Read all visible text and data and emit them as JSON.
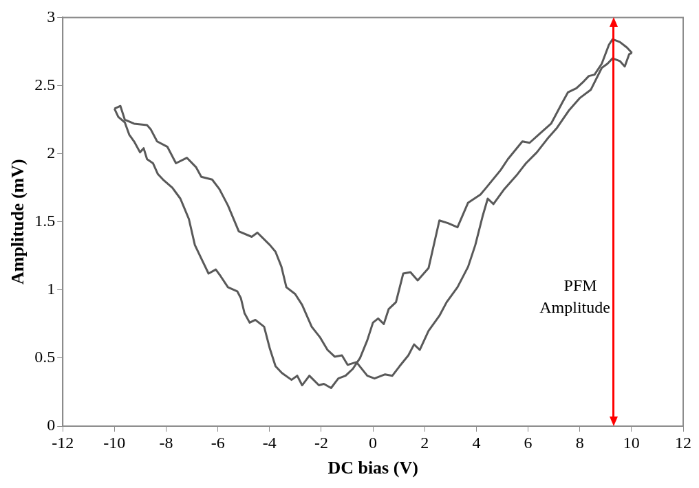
{
  "chart_data": {
    "type": "line",
    "xlabel": "DC bias (V)",
    "ylabel": "Amplitude (mV)",
    "xlim": [
      -12,
      12
    ],
    "xticks": [
      -12,
      -10,
      -8,
      -6,
      -4,
      -2,
      0,
      2,
      4,
      6,
      8,
      10,
      12
    ],
    "ylim": [
      0,
      3
    ],
    "yticks": [
      0,
      0.5,
      1,
      1.5,
      2,
      2.5,
      3
    ],
    "grid": false,
    "legend": false,
    "marker": "none",
    "line_style": "solid",
    "ref_lines": [
      {
        "axis": "x",
        "value": 9.3,
        "label": "PFM Amplitude",
        "color": "#ff0000"
      }
    ],
    "series": [
      {
        "color": "#595959",
        "x": [
          -10,
          -9.77,
          -9.6,
          -9.24,
          -8.74,
          -8.6,
          -8.35,
          -7.95,
          -7.62,
          -7.2,
          -6.84,
          -6.64,
          -6.22,
          -5.94,
          -5.61,
          -5.19,
          -4.69,
          -4.47,
          -3.99,
          -3.77,
          -3.54,
          -3.35,
          -3.01,
          -2.74,
          -2.37,
          -2.04,
          -1.76,
          -1.48,
          -1.2,
          -0.98,
          -0.64,
          -0.22,
          0.06,
          0.47,
          0.75,
          1.03,
          1.37,
          1.59,
          1.81,
          2.15,
          2.57,
          2.85,
          3.27,
          3.68,
          3.96,
          4.24,
          4.44,
          4.66,
          5.08,
          5.55,
          5.92,
          6.34,
          6.75,
          7.12,
          7.59,
          8.01,
          8.43,
          8.85,
          9.07,
          9.27,
          9.55,
          9.74,
          9.91,
          10.02
        ],
        "values": [
          2.33,
          2.35,
          2.25,
          2.22,
          2.21,
          2.18,
          2.09,
          2.05,
          1.93,
          1.97,
          1.9,
          1.83,
          1.81,
          1.74,
          1.62,
          1.43,
          1.39,
          1.42,
          1.33,
          1.28,
          1.17,
          1.02,
          0.97,
          0.89,
          0.73,
          0.65,
          0.56,
          0.51,
          0.52,
          0.45,
          0.47,
          0.37,
          0.35,
          0.38,
          0.37,
          0.44,
          0.52,
          0.6,
          0.56,
          0.7,
          0.81,
          0.91,
          1.02,
          1.17,
          1.33,
          1.54,
          1.67,
          1.63,
          1.74,
          1.84,
          1.93,
          2.01,
          2.11,
          2.19,
          2.32,
          2.41,
          2.47,
          2.63,
          2.66,
          2.7,
          2.68,
          2.64,
          2.73,
          2.74
        ]
      },
      {
        "color": "#595959",
        "x": [
          -10,
          -9.85,
          -9.6,
          -9.43,
          -9.24,
          -9.01,
          -8.87,
          -8.74,
          -8.51,
          -8.32,
          -8.12,
          -7.76,
          -7.45,
          -7.34,
          -7.12,
          -6.89,
          -6.64,
          -6.36,
          -6.08,
          -5.89,
          -5.61,
          -5.25,
          -5.11,
          -4.97,
          -4.77,
          -4.55,
          -4.21,
          -3.99,
          -3.77,
          -3.52,
          -3.15,
          -2.93,
          -2.74,
          -2.46,
          -2.09,
          -1.9,
          -1.62,
          -1.34,
          -1.06,
          -0.78,
          -0.5,
          -0.22,
          0,
          0.2,
          0.42,
          0.61,
          0.89,
          1.17,
          1.45,
          1.73,
          2.15,
          2.57,
          2.9,
          3.27,
          3.68,
          4.16,
          4.38,
          4.94,
          5.22,
          5.78,
          6.06,
          6.47,
          6.89,
          7.31,
          7.54,
          7.87,
          8.15,
          8.35,
          8.57,
          8.85,
          9.13,
          9.27,
          9.55,
          9.82,
          10.02
        ],
        "values": [
          2.33,
          2.27,
          2.23,
          2.14,
          2.09,
          2.01,
          2.04,
          1.96,
          1.93,
          1.85,
          1.81,
          1.75,
          1.67,
          1.62,
          1.52,
          1.33,
          1.23,
          1.12,
          1.15,
          1.1,
          1.02,
          0.99,
          0.94,
          0.83,
          0.76,
          0.78,
          0.73,
          0.57,
          0.44,
          0.39,
          0.34,
          0.37,
          0.3,
          0.37,
          0.3,
          0.31,
          0.28,
          0.35,
          0.37,
          0.42,
          0.5,
          0.63,
          0.76,
          0.79,
          0.75,
          0.86,
          0.91,
          1.12,
          1.13,
          1.07,
          1.16,
          1.51,
          1.49,
          1.46,
          1.64,
          1.7,
          1.75,
          1.88,
          1.96,
          2.09,
          2.08,
          2.15,
          2.22,
          2.37,
          2.45,
          2.48,
          2.53,
          2.57,
          2.58,
          2.66,
          2.8,
          2.84,
          2.82,
          2.78,
          2.74
        ]
      }
    ]
  }
}
